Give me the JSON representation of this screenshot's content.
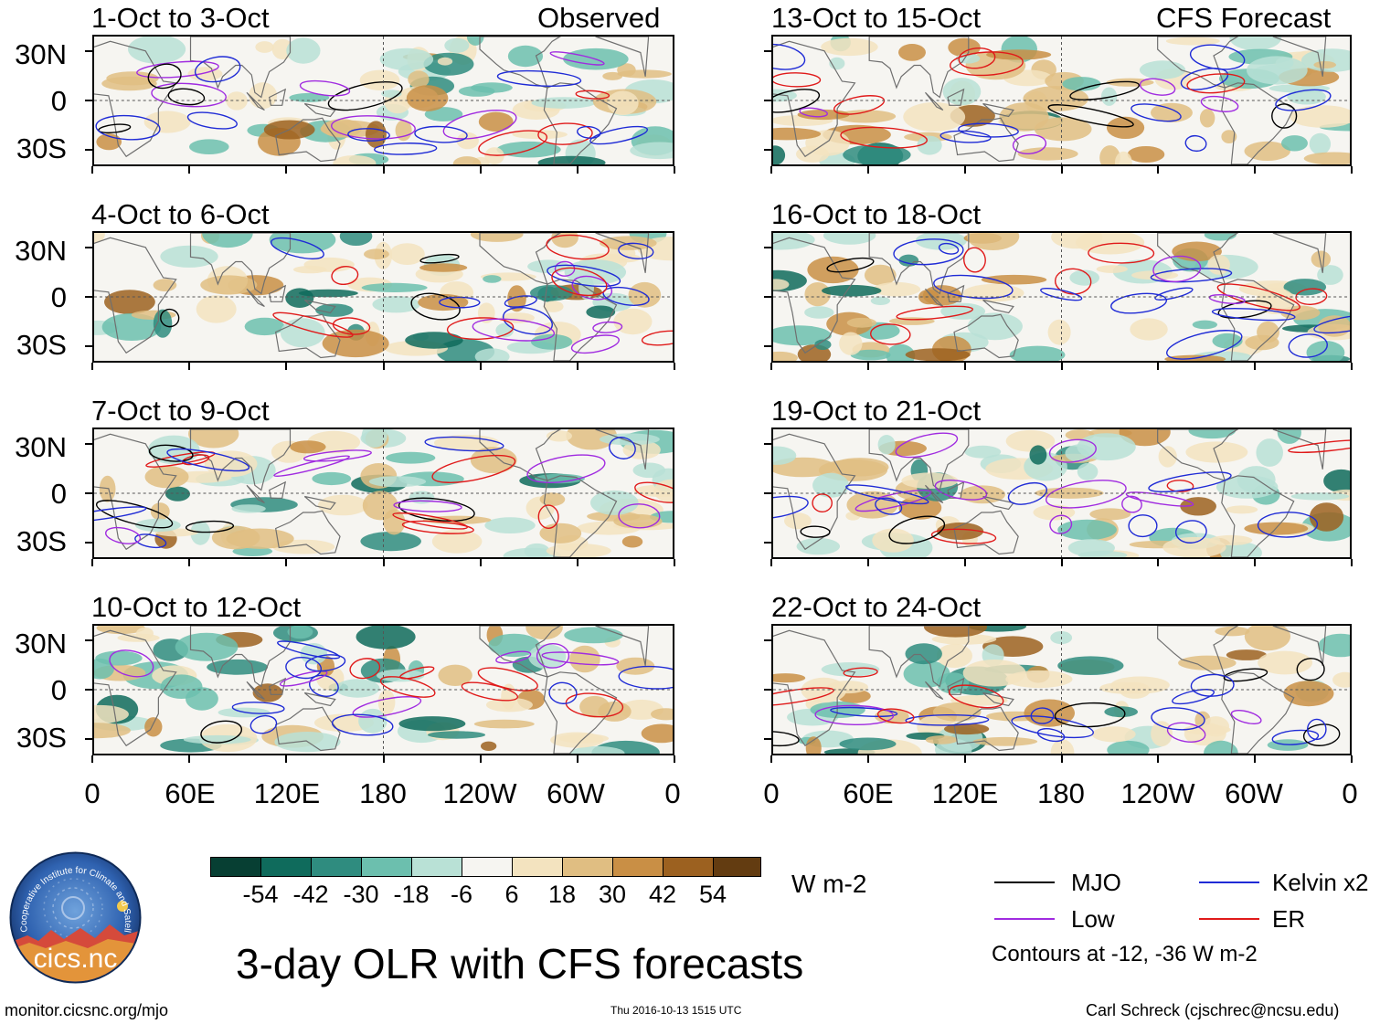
{
  "chart_data": {
    "type": "heatmap",
    "title": "3-day OLR with CFS forecasts",
    "units": "W m-2",
    "colorbar": {
      "ticks": [
        "-54",
        "-42",
        "-30",
        "-18",
        "-6",
        "6",
        "18",
        "30",
        "42",
        "54"
      ],
      "colors": [
        "#073f33",
        "#0f6b5c",
        "#2f8c7f",
        "#6cbfae",
        "#b9e1d6",
        "#f6f5f1",
        "#f3e3bf",
        "#e0be82",
        "#c98f45",
        "#9c6120",
        "#633c11"
      ]
    },
    "lat_labels": [
      "30N",
      "0",
      "30S"
    ],
    "lon_labels": [
      "0",
      "60E",
      "120E",
      "180",
      "120W",
      "60W",
      "0"
    ],
    "lat_range": [
      -40,
      40
    ],
    "lon_range": [
      0,
      360
    ],
    "columns": [
      {
        "label": "Observed",
        "panels": [
          {
            "period": "1-Oct to 3-Oct"
          },
          {
            "period": "4-Oct to 6-Oct"
          },
          {
            "period": "7-Oct to 9-Oct"
          },
          {
            "period": "10-Oct to 12-Oct"
          }
        ]
      },
      {
        "label": "CFS Forecast",
        "panels": [
          {
            "period": "13-Oct to 15-Oct"
          },
          {
            "period": "16-Oct to 18-Oct"
          },
          {
            "period": "19-Oct to 21-Oct"
          },
          {
            "period": "22-Oct to 24-Oct"
          }
        ]
      }
    ],
    "contour_legend": [
      {
        "name": "MJO",
        "color": "#000000"
      },
      {
        "name": "Kelvin x2",
        "color": "#1f2bd6"
      },
      {
        "name": "Low",
        "color": "#a02be0"
      },
      {
        "name": "ER",
        "color": "#e01a1a"
      }
    ],
    "contour_note": "Contours at -12, -36 W m-2"
  },
  "footer": {
    "logo_text": "cics.nc",
    "logo_ring_text": "Cooperative Institute for Climate and Satellites",
    "website": "monitor.cicsnc.org/mjo",
    "timestamp": "Thu 2016-10-13 1515 UTC",
    "author": "Carl Schreck (cjschrec@ncsu.edu)"
  }
}
